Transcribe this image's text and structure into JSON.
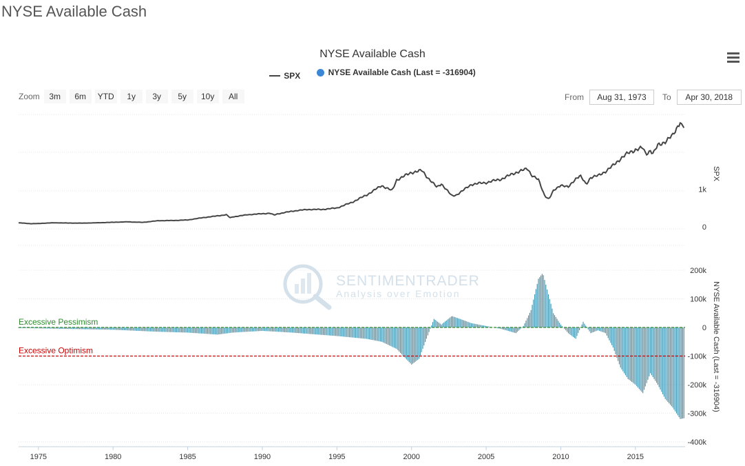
{
  "page": {
    "title": "NYSE Available Cash"
  },
  "header": {
    "menu_icon": "hamburger-menu-icon"
  },
  "zoom": {
    "label": "Zoom",
    "buttons": [
      "3m",
      "6m",
      "YTD",
      "1y",
      "3y",
      "5y",
      "10y",
      "All"
    ]
  },
  "range": {
    "from_label": "From",
    "from_value": "Aug 31, 1973",
    "to_label": "To",
    "to_value": "Apr 30, 2018"
  },
  "watermark": {
    "brand": "SENTIMENTRADER",
    "tagline": "Analysis over Emotion"
  },
  "colors": {
    "spx_line": "#444444",
    "cash_bars": "#3d8eaa",
    "pessimism": "#2e8b2e",
    "optimism": "#cc0000",
    "legend_dot": "#3a87d6"
  },
  "chart_data": {
    "type": "line+bar",
    "title": "NYSE Available Cash",
    "legend": [
      "SPX",
      "NYSE Available Cash (Last = -316904)"
    ],
    "x_axis": {
      "min": 1973.67,
      "max": 2018.33,
      "ticks": [
        "1975",
        "1980",
        "1985",
        "1990",
        "1995",
        "2000",
        "2005",
        "2010",
        "2015"
      ]
    },
    "spx": {
      "name": "SPX",
      "axis_label": "SPX",
      "ticks": [
        "0",
        "1k"
      ],
      "ylim": [
        -500,
        3000
      ],
      "points": [
        [
          1973.67,
          105
        ],
        [
          1974.5,
          80
        ],
        [
          1975,
          85
        ],
        [
          1976,
          105
        ],
        [
          1977,
          98
        ],
        [
          1978,
          96
        ],
        [
          1979,
          105
        ],
        [
          1980,
          118
        ],
        [
          1981,
          130
        ],
        [
          1982,
          115
        ],
        [
          1983,
          160
        ],
        [
          1984,
          165
        ],
        [
          1985,
          180
        ],
        [
          1986,
          240
        ],
        [
          1987.6,
          320
        ],
        [
          1987.85,
          235
        ],
        [
          1988,
          260
        ],
        [
          1989,
          320
        ],
        [
          1990.5,
          360
        ],
        [
          1990.8,
          310
        ],
        [
          1991,
          340
        ],
        [
          1992,
          415
        ],
        [
          1993,
          460
        ],
        [
          1994,
          460
        ],
        [
          1995,
          500
        ],
        [
          1996,
          650
        ],
        [
          1997,
          850
        ],
        [
          1998,
          1100
        ],
        [
          1998.7,
          960
        ],
        [
          1999,
          1250
        ],
        [
          2000,
          1450
        ],
        [
          2000.7,
          1500
        ],
        [
          2001,
          1350
        ],
        [
          2001.7,
          1050
        ],
        [
          2002,
          1150
        ],
        [
          2002.7,
          820
        ],
        [
          2003,
          850
        ],
        [
          2003.5,
          980
        ],
        [
          2004,
          1130
        ],
        [
          2005,
          1180
        ],
        [
          2006,
          1270
        ],
        [
          2007,
          1450
        ],
        [
          2007.8,
          1550
        ],
        [
          2008,
          1400
        ],
        [
          2008.5,
          1250
        ],
        [
          2008.9,
          850
        ],
        [
          2009.2,
          735
        ],
        [
          2009.5,
          950
        ],
        [
          2010,
          1120
        ],
        [
          2010.5,
          1050
        ],
        [
          2011,
          1290
        ],
        [
          2011.3,
          1360
        ],
        [
          2011.7,
          1130
        ],
        [
          2012,
          1320
        ],
        [
          2012.5,
          1360
        ],
        [
          2013,
          1480
        ],
        [
          2013.5,
          1630
        ],
        [
          2014,
          1820
        ],
        [
          2014.5,
          1960
        ],
        [
          2015,
          2060
        ],
        [
          2015.5,
          2100
        ],
        [
          2015.7,
          1940
        ],
        [
          2016,
          2040
        ],
        [
          2016.2,
          1950
        ],
        [
          2016.5,
          2170
        ],
        [
          2017,
          2280
        ],
        [
          2017.5,
          2430
        ],
        [
          2018,
          2820
        ],
        [
          2018.1,
          2700
        ],
        [
          2018.33,
          2650
        ]
      ]
    },
    "nyse_available_cash": {
      "name": "NYSE Available Cash (Last = -316904)",
      "axis_label": "NYSE Available Cash (Last = -316904)",
      "ticks": [
        "200k",
        "100k",
        "0",
        "-100k",
        "-200k",
        "-300k",
        "-400k"
      ],
      "ylim": [
        -400000,
        200000
      ],
      "last": -316904,
      "points": [
        [
          1973.67,
          -2000
        ],
        [
          1975,
          -3000
        ],
        [
          1977,
          -5000
        ],
        [
          1980,
          -8000
        ],
        [
          1983,
          -15000
        ],
        [
          1985,
          -18000
        ],
        [
          1987,
          -25000
        ],
        [
          1988,
          -18000
        ],
        [
          1990,
          -12000
        ],
        [
          1992,
          -18000
        ],
        [
          1995,
          -30000
        ],
        [
          1997,
          -40000
        ],
        [
          1998,
          -50000
        ],
        [
          1999,
          -75000
        ],
        [
          2000,
          -130000
        ],
        [
          2000.5,
          -110000
        ],
        [
          2001,
          -40000
        ],
        [
          2001.5,
          30000
        ],
        [
          2002,
          10000
        ],
        [
          2002.7,
          40000
        ],
        [
          2003.5,
          25000
        ],
        [
          2004,
          15000
        ],
        [
          2005,
          5000
        ],
        [
          2006,
          -5000
        ],
        [
          2007,
          -20000
        ],
        [
          2007.5,
          5000
        ],
        [
          2008,
          60000
        ],
        [
          2008.5,
          170000
        ],
        [
          2008.8,
          190000
        ],
        [
          2009.2,
          110000
        ],
        [
          2009.5,
          50000
        ],
        [
          2010,
          10000
        ],
        [
          2010.5,
          -20000
        ],
        [
          2011,
          -40000
        ],
        [
          2011.5,
          20000
        ],
        [
          2012,
          -20000
        ],
        [
          2012.5,
          -10000
        ],
        [
          2013,
          -20000
        ],
        [
          2013.5,
          -70000
        ],
        [
          2014,
          -140000
        ],
        [
          2014.5,
          -180000
        ],
        [
          2015,
          -200000
        ],
        [
          2015.5,
          -230000
        ],
        [
          2016,
          -160000
        ],
        [
          2016.5,
          -200000
        ],
        [
          2017,
          -250000
        ],
        [
          2017.5,
          -280000
        ],
        [
          2018,
          -320000
        ],
        [
          2018.33,
          -316904
        ]
      ]
    },
    "reference_lines": [
      {
        "label": "Excessive Pessimism",
        "value": 0
      },
      {
        "label": "Excessive Optimism",
        "value": -100000
      }
    ]
  }
}
